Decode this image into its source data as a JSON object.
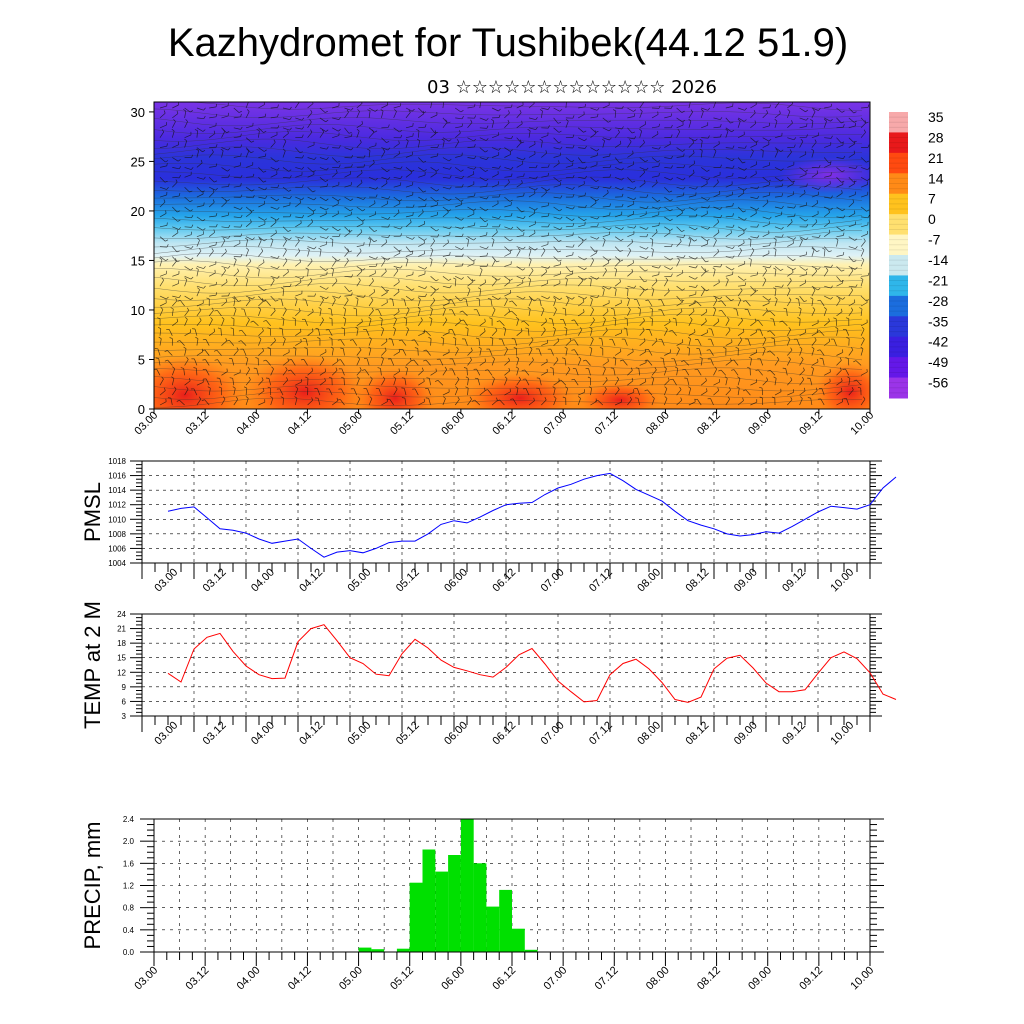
{
  "header": {
    "title": "Kazhydromet for Tushibek(44.12 51.9)",
    "subtitle": "03 ☆☆☆☆☆☆☆☆☆☆☆☆☆ 2026"
  },
  "time_labels": [
    "03.00",
    "03.12",
    "04.00",
    "04.12",
    "05.00",
    "05.12",
    "06.00",
    "06.12",
    "07.00",
    "07.12",
    "08.00",
    "08.12",
    "09.00",
    "09.12",
    "10.00"
  ],
  "chart_data": [
    {
      "type": "heatmap",
      "name": "cross-section",
      "title": "",
      "ylim": [
        0,
        31
      ],
      "y_ticks": [
        "0",
        "5",
        "10",
        "15",
        "20",
        "25",
        "30"
      ],
      "colorbar": {
        "labels": [
          "35",
          "28",
          "21",
          "14",
          "7",
          "0",
          "-7",
          "-14",
          "-21",
          "-28",
          "-35",
          "-42",
          "-49",
          "-56"
        ],
        "colors": [
          "#f7a9aa",
          "#e8191b",
          "#ff4a10",
          "#ff8a17",
          "#ffc21e",
          "#ffe070",
          "#fff6c4",
          "#cbe9ef",
          "#2fb6ea",
          "#1b6dde",
          "#2a38da",
          "#3a1fe0",
          "#6418e8",
          "#9b34e8"
        ]
      }
    },
    {
      "type": "line",
      "name": "pmsl",
      "ylabel": "PMSL",
      "ylim": [
        1004,
        1018
      ],
      "y_ticks": [
        "1004",
        "1006",
        "1008",
        "1010",
        "1012",
        "1014",
        "1016",
        "1018"
      ],
      "color": "#0000ff",
      "x_offset": 3.25,
      "x_step": 0.125,
      "values": [
        1011.1,
        1011.5,
        1011.7,
        1010.2,
        1008.7,
        1008.5,
        1008.1,
        1007.3,
        1006.7,
        1007.0,
        1007.3,
        1006.0,
        1004.8,
        1005.5,
        1005.7,
        1005.4,
        1006.0,
        1006.8,
        1007.0,
        1007.0,
        1008.0,
        1009.3,
        1009.8,
        1009.5,
        1010.3,
        1011.2,
        1012.0,
        1012.2,
        1012.3,
        1013.4,
        1014.3,
        1014.8,
        1015.5,
        1016.0,
        1016.3,
        1015.3,
        1014.1,
        1013.3,
        1012.5,
        1011.1,
        1009.8,
        1009.2,
        1008.7,
        1008.0,
        1007.7,
        1007.9,
        1008.3,
        1008.1,
        1009.0,
        1010.0,
        1011.0,
        1011.8,
        1011.6,
        1011.4,
        1012.0,
        1014.3,
        1015.8
      ]
    },
    {
      "type": "line",
      "name": "temp-2m",
      "ylabel": "TEMP at 2 M",
      "ylim": [
        3,
        24
      ],
      "y_ticks": [
        "3",
        "6",
        "9",
        "12",
        "15",
        "18",
        "21",
        "24"
      ],
      "color": "#ff0000",
      "x_offset": 3.25,
      "x_step": 0.125,
      "values": [
        11.8,
        10.0,
        16.8,
        19.2,
        20.0,
        16.3,
        13.3,
        11.5,
        10.7,
        10.8,
        18.3,
        21.0,
        21.8,
        18.5,
        15.0,
        13.8,
        11.6,
        11.3,
        15.8,
        18.8,
        17.0,
        14.5,
        13.0,
        12.3,
        11.5,
        11.0,
        13.0,
        15.6,
        16.9,
        13.7,
        10.2,
        8.0,
        5.9,
        6.2,
        11.5,
        13.8,
        14.7,
        12.7,
        9.9,
        6.4,
        5.8,
        6.9,
        12.7,
        14.9,
        15.5,
        12.9,
        9.8,
        8.0,
        8.0,
        8.4,
        11.8,
        15.0,
        16.2,
        14.8,
        11.9,
        7.5,
        6.4
      ]
    },
    {
      "type": "bar",
      "name": "precip",
      "ylabel": "PRECIP, mm",
      "ylim": [
        0,
        2.4
      ],
      "y_ticks": [
        "0.0",
        "0.4",
        "0.8",
        "1.2",
        "1.6",
        "2.0",
        "2.4"
      ],
      "color": "#00e000",
      "bar_start": 3.0,
      "bar_width": 0.125,
      "values": [
        0,
        0,
        0,
        0,
        0,
        0,
        0,
        0,
        0,
        0,
        0,
        0,
        0,
        0,
        0,
        0,
        0.08,
        0.05,
        0,
        0.06,
        1.25,
        1.85,
        1.45,
        1.75,
        2.4,
        1.6,
        0.82,
        1.12,
        0.42,
        0.04,
        0,
        0,
        0,
        0,
        0,
        0,
        0,
        0,
        0,
        0,
        0,
        0,
        0,
        0,
        0,
        0,
        0,
        0,
        0,
        0,
        0,
        0,
        0,
        0,
        0,
        0
      ]
    }
  ]
}
